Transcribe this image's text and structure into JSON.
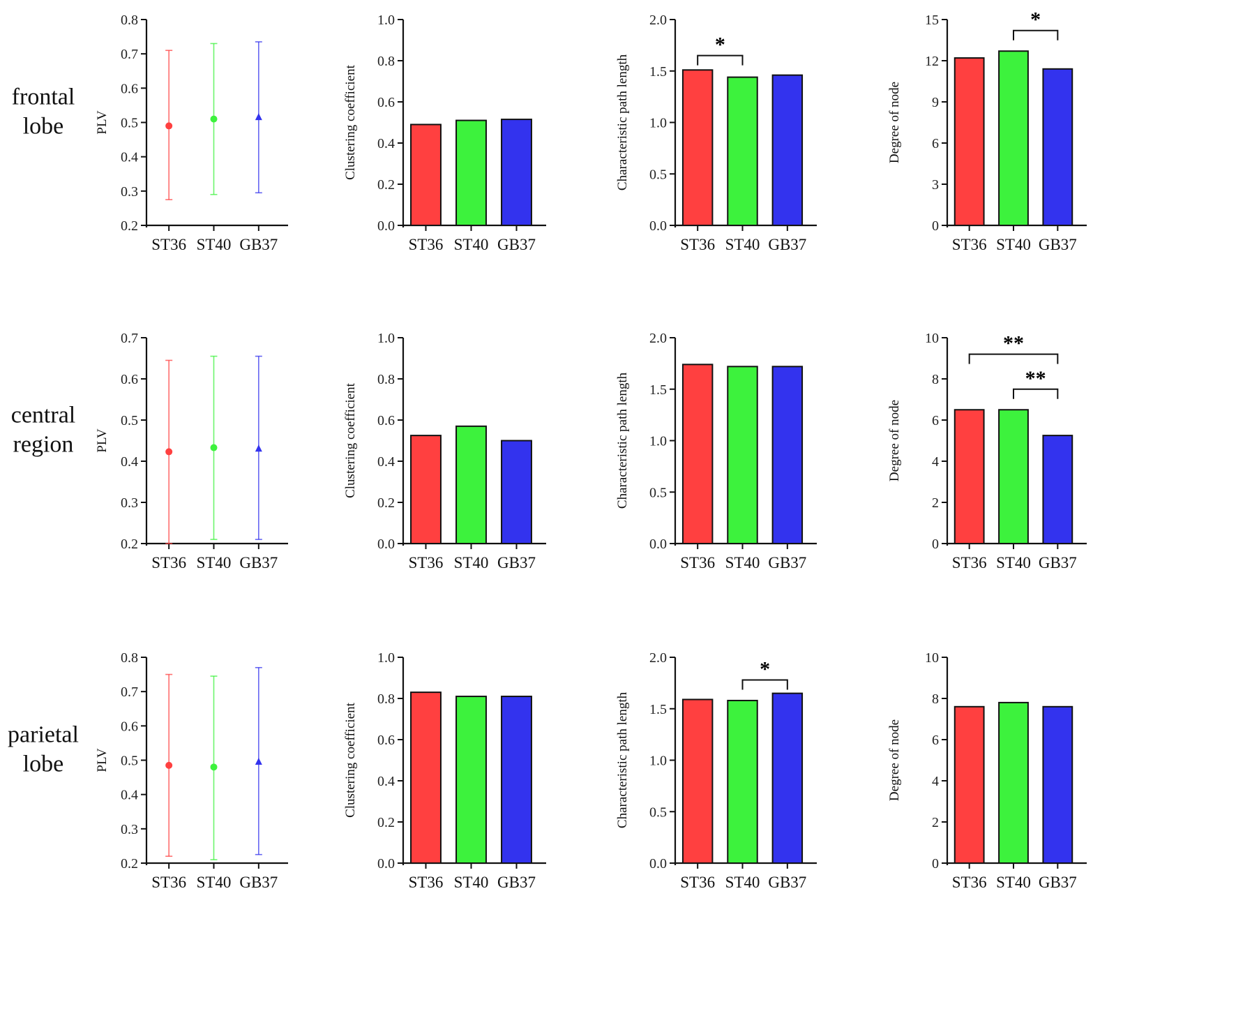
{
  "colors": {
    "ST36": "#ff4040",
    "ST40": "#3df23d",
    "GB37": "#3333ee"
  },
  "rows": [
    {
      "label_lines": [
        "frontal",
        "lobe"
      ],
      "charts": [
        {
          "type": "scatter",
          "ylabel": "PLV",
          "ylim": [
            0.2,
            0.8
          ],
          "ticks": [
            0.2,
            0.3,
            0.4,
            0.5,
            0.6,
            0.7,
            0.8
          ],
          "categories": [
            "ST36",
            "ST40",
            "GB37"
          ],
          "values": [
            0.49,
            0.51,
            0.515
          ],
          "err_low": [
            0.275,
            0.29,
            0.295
          ],
          "err_high": [
            0.71,
            0.73,
            0.735
          ],
          "sig": []
        },
        {
          "type": "bar",
          "ylabel": "Clustering coefficient",
          "ylim": [
            0,
            1.0
          ],
          "ticks": [
            0.0,
            0.2,
            0.4,
            0.6,
            0.8,
            1.0
          ],
          "categories": [
            "ST36",
            "ST40",
            "GB37"
          ],
          "values": [
            0.49,
            0.51,
            0.515
          ],
          "sig": []
        },
        {
          "type": "bar",
          "ylabel": "Characteristic path length",
          "ylim": [
            0,
            2.0
          ],
          "ticks": [
            0.0,
            0.5,
            1.0,
            1.5,
            2.0
          ],
          "categories": [
            "ST36",
            "ST40",
            "GB37"
          ],
          "values": [
            1.51,
            1.44,
            1.46
          ],
          "sig": [
            {
              "from": 0,
              "to": 1,
              "level": 1.65,
              "label": "*"
            }
          ]
        },
        {
          "type": "bar",
          "ylabel": "Degree of node",
          "ylim": [
            0,
            15
          ],
          "ticks": [
            0,
            3,
            6,
            9,
            12,
            15
          ],
          "categories": [
            "ST36",
            "ST40",
            "GB37"
          ],
          "values": [
            12.2,
            12.7,
            11.4
          ],
          "sig": [
            {
              "from": 1,
              "to": 2,
              "level": 14.2,
              "label": "*"
            }
          ]
        }
      ]
    },
    {
      "label_lines": [
        "central",
        "region"
      ],
      "charts": [
        {
          "type": "scatter",
          "ylabel": "PLV",
          "ylim": [
            0.2,
            0.7
          ],
          "ticks": [
            0.2,
            0.3,
            0.4,
            0.5,
            0.6,
            0.7
          ],
          "categories": [
            "ST36",
            "ST40",
            "GB37"
          ],
          "values": [
            0.423,
            0.433,
            0.43
          ],
          "err_low": [
            0.2,
            0.21,
            0.21
          ],
          "err_high": [
            0.645,
            0.655,
            0.655
          ],
          "sig": []
        },
        {
          "type": "bar",
          "ylabel": "Clustering coefficient",
          "ylim": [
            0,
            1.0
          ],
          "ticks": [
            0.0,
            0.2,
            0.4,
            0.6,
            0.8,
            1.0
          ],
          "categories": [
            "ST36",
            "ST40",
            "GB37"
          ],
          "values": [
            0.525,
            0.57,
            0.5
          ],
          "sig": []
        },
        {
          "type": "bar",
          "ylabel": "Characteristic path length",
          "ylim": [
            0,
            2.0
          ],
          "ticks": [
            0.0,
            0.5,
            1.0,
            1.5,
            2.0
          ],
          "categories": [
            "ST36",
            "ST40",
            "GB37"
          ],
          "values": [
            1.74,
            1.72,
            1.72
          ],
          "sig": []
        },
        {
          "type": "bar",
          "ylabel": "Degree of node",
          "ylim": [
            0,
            10
          ],
          "ticks": [
            0,
            2,
            4,
            6,
            8,
            10
          ],
          "categories": [
            "ST36",
            "ST40",
            "GB37"
          ],
          "values": [
            6.5,
            6.5,
            5.25
          ],
          "sig": [
            {
              "from": 0,
              "to": 2,
              "level": 9.2,
              "label": "**"
            },
            {
              "from": 1,
              "to": 2,
              "level": 7.5,
              "label": "**"
            }
          ]
        }
      ]
    },
    {
      "label_lines": [
        "parietal",
        "lobe"
      ],
      "charts": [
        {
          "type": "scatter",
          "ylabel": "PLV",
          "ylim": [
            0.2,
            0.8
          ],
          "ticks": [
            0.2,
            0.3,
            0.4,
            0.5,
            0.6,
            0.7,
            0.8
          ],
          "categories": [
            "ST36",
            "ST40",
            "GB37"
          ],
          "values": [
            0.485,
            0.48,
            0.495
          ],
          "err_low": [
            0.22,
            0.21,
            0.225
          ],
          "err_high": [
            0.75,
            0.745,
            0.77
          ],
          "sig": []
        },
        {
          "type": "bar",
          "ylabel": "Clustering coefficient",
          "ylim": [
            0,
            1.0
          ],
          "ticks": [
            0.0,
            0.2,
            0.4,
            0.6,
            0.8,
            1.0
          ],
          "categories": [
            "ST36",
            "ST40",
            "GB37"
          ],
          "values": [
            0.83,
            0.81,
            0.81
          ],
          "sig": []
        },
        {
          "type": "bar",
          "ylabel": "Characteristic path length",
          "ylim": [
            0,
            2.0
          ],
          "ticks": [
            0.0,
            0.5,
            1.0,
            1.5,
            2.0
          ],
          "categories": [
            "ST36",
            "ST40",
            "GB37"
          ],
          "values": [
            1.59,
            1.58,
            1.65
          ],
          "sig": [
            {
              "from": 1,
              "to": 2,
              "level": 1.78,
              "label": "*"
            }
          ]
        },
        {
          "type": "bar",
          "ylabel": "Degree of node",
          "ylim": [
            0,
            10
          ],
          "ticks": [
            0,
            2,
            4,
            6,
            8,
            10
          ],
          "categories": [
            "ST36",
            "ST40",
            "GB37"
          ],
          "values": [
            7.6,
            7.8,
            7.6
          ],
          "sig": []
        }
      ]
    }
  ],
  "chart_data": [
    {
      "panel": "frontal lobe",
      "type": "scatter",
      "ylabel": "PLV",
      "categories": [
        "ST36",
        "ST40",
        "GB37"
      ],
      "values": [
        0.49,
        0.51,
        0.515
      ],
      "error_low": [
        0.275,
        0.29,
        0.295
      ],
      "error_high": [
        0.71,
        0.73,
        0.735
      ],
      "ylim": [
        0.2,
        0.8
      ]
    },
    {
      "panel": "frontal lobe",
      "type": "bar",
      "ylabel": "Clustering coefficient",
      "categories": [
        "ST36",
        "ST40",
        "GB37"
      ],
      "values": [
        0.49,
        0.51,
        0.515
      ],
      "ylim": [
        0,
        1.0
      ]
    },
    {
      "panel": "frontal lobe",
      "type": "bar",
      "ylabel": "Characteristic path length",
      "categories": [
        "ST36",
        "ST40",
        "GB37"
      ],
      "values": [
        1.51,
        1.44,
        1.46
      ],
      "ylim": [
        0,
        2.0
      ],
      "annotations": [
        "* ST36 vs ST40"
      ]
    },
    {
      "panel": "frontal lobe",
      "type": "bar",
      "ylabel": "Degree of node",
      "categories": [
        "ST36",
        "ST40",
        "GB37"
      ],
      "values": [
        12.2,
        12.7,
        11.4
      ],
      "ylim": [
        0,
        15
      ],
      "annotations": [
        "* ST40 vs GB37"
      ]
    },
    {
      "panel": "central region",
      "type": "scatter",
      "ylabel": "PLV",
      "categories": [
        "ST36",
        "ST40",
        "GB37"
      ],
      "values": [
        0.423,
        0.433,
        0.43
      ],
      "error_low": [
        0.2,
        0.21,
        0.21
      ],
      "error_high": [
        0.645,
        0.655,
        0.655
      ],
      "ylim": [
        0.2,
        0.7
      ]
    },
    {
      "panel": "central region",
      "type": "bar",
      "ylabel": "Clustering coefficient",
      "categories": [
        "ST36",
        "ST40",
        "GB37"
      ],
      "values": [
        0.525,
        0.57,
        0.5
      ],
      "ylim": [
        0,
        1.0
      ]
    },
    {
      "panel": "central region",
      "type": "bar",
      "ylabel": "Characteristic path length",
      "categories": [
        "ST36",
        "ST40",
        "GB37"
      ],
      "values": [
        1.74,
        1.72,
        1.72
      ],
      "ylim": [
        0,
        2.0
      ]
    },
    {
      "panel": "central region",
      "type": "bar",
      "ylabel": "Degree of node",
      "categories": [
        "ST36",
        "ST40",
        "GB37"
      ],
      "values": [
        6.5,
        6.5,
        5.25
      ],
      "ylim": [
        0,
        10
      ],
      "annotations": [
        "** ST36 vs GB37",
        "** ST40 vs GB37"
      ]
    },
    {
      "panel": "parietal lobe",
      "type": "scatter",
      "ylabel": "PLV",
      "categories": [
        "ST36",
        "ST40",
        "GB37"
      ],
      "values": [
        0.485,
        0.48,
        0.495
      ],
      "error_low": [
        0.22,
        0.21,
        0.225
      ],
      "error_high": [
        0.75,
        0.745,
        0.77
      ],
      "ylim": [
        0.2,
        0.8
      ]
    },
    {
      "panel": "parietal lobe",
      "type": "bar",
      "ylabel": "Clustering coefficient",
      "categories": [
        "ST36",
        "ST40",
        "GB37"
      ],
      "values": [
        0.83,
        0.81,
        0.81
      ],
      "ylim": [
        0,
        1.0
      ]
    },
    {
      "panel": "parietal lobe",
      "type": "bar",
      "ylabel": "Characteristic path length",
      "categories": [
        "ST36",
        "ST40",
        "GB37"
      ],
      "values": [
        1.59,
        1.58,
        1.65
      ],
      "ylim": [
        0,
        2.0
      ],
      "annotations": [
        "* ST40 vs GB37"
      ]
    },
    {
      "panel": "parietal lobe",
      "type": "bar",
      "ylabel": "Degree of node",
      "categories": [
        "ST36",
        "ST40",
        "GB37"
      ],
      "values": [
        7.6,
        7.8,
        7.6
      ],
      "ylim": [
        0,
        10
      ]
    }
  ]
}
